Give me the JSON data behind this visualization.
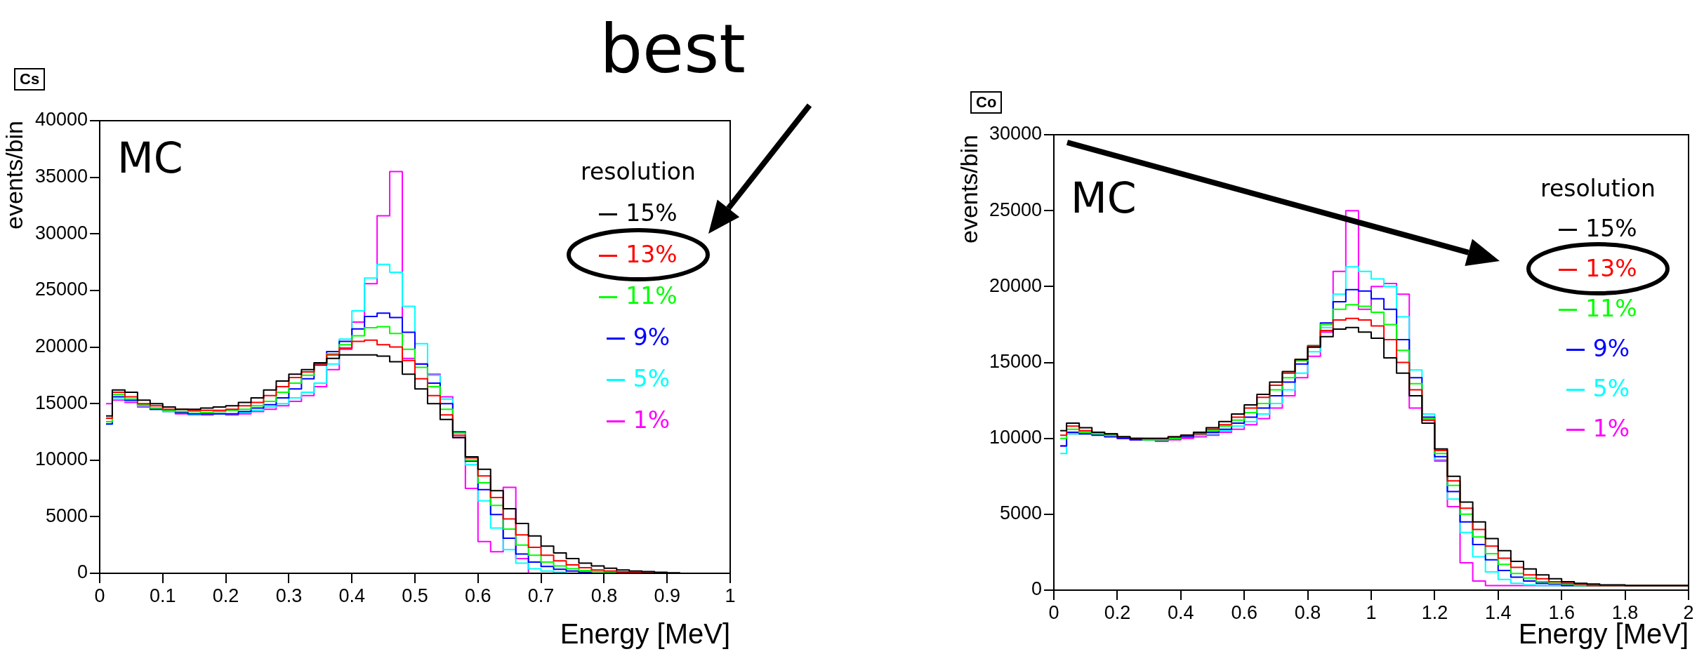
{
  "chart_data": [
    {
      "type": "histogram",
      "title": "Cs",
      "xlabel": "Energy [MeV]",
      "ylabel": "events/bin",
      "legend_title": "resolution",
      "annotations": [
        "MC",
        "best"
      ],
      "legend": "top right",
      "grid": false,
      "xlim": [
        0,
        1
      ],
      "xticks": [
        0,
        0.1,
        0.2,
        0.3,
        0.4,
        0.5,
        0.6,
        0.7,
        0.8,
        0.9,
        1
      ],
      "ylim": [
        0,
        40000
      ],
      "yticks": [
        0,
        5000,
        10000,
        15000,
        20000,
        25000,
        30000,
        35000,
        40000
      ],
      "bins": [
        0.01,
        0.02,
        0.04,
        0.06,
        0.08,
        0.1,
        0.12,
        0.14,
        0.16,
        0.18,
        0.2,
        0.22,
        0.24,
        0.26,
        0.28,
        0.3,
        0.32,
        0.34,
        0.36,
        0.38,
        0.4,
        0.42,
        0.44,
        0.46,
        0.48,
        0.5,
        0.52,
        0.54,
        0.56,
        0.58,
        0.6,
        0.62,
        0.64,
        0.66,
        0.68,
        0.7,
        0.72,
        0.74,
        0.76,
        0.78,
        0.8,
        0.82,
        0.84,
        0.86,
        0.88,
        0.9,
        0.92,
        0.94,
        0.96,
        0.98,
        1
      ],
      "series": [
        {
          "name": "15%",
          "color": "#000000",
          "values": [
            13900,
            16200,
            16000,
            15300,
            15000,
            14700,
            14500,
            14500,
            14600,
            14700,
            14800,
            15100,
            15500,
            16200,
            17000,
            17600,
            18000,
            18600,
            19000,
            19300,
            19300,
            19300,
            19200,
            18700,
            17600,
            16300,
            15000,
            13600,
            12000,
            10300,
            9200,
            7300,
            5700,
            4400,
            3300,
            2400,
            1800,
            1300,
            900,
            650,
            450,
            300,
            200,
            150,
            100,
            50,
            0,
            0,
            0,
            0
          ]
        },
        {
          "name": "13%",
          "color": "#ff0000",
          "values": [
            13700,
            16000,
            15600,
            15000,
            14800,
            14500,
            14500,
            14400,
            14400,
            14400,
            14500,
            14800,
            15100,
            15700,
            16500,
            17300,
            17800,
            18500,
            19300,
            19900,
            20500,
            20600,
            20200,
            20000,
            18800,
            17200,
            15700,
            14000,
            12200,
            10200,
            8600,
            6700,
            4800,
            3400,
            2300,
            1600,
            1100,
            750,
            500,
            300,
            200,
            120,
            80,
            50,
            0,
            0,
            0,
            0,
            0,
            0
          ]
        },
        {
          "name": "11%",
          "color": "#00ff00",
          "values": [
            13400,
            15800,
            15400,
            14900,
            14600,
            14400,
            14300,
            14300,
            14200,
            14300,
            14400,
            14500,
            14800,
            15200,
            16000,
            16800,
            17500,
            18500,
            19400,
            20200,
            21000,
            21700,
            21800,
            21200,
            19800,
            18200,
            16500,
            14500,
            12400,
            10000,
            8000,
            6000,
            3900,
            2500,
            1600,
            1000,
            650,
            400,
            250,
            150,
            100,
            50,
            0,
            0,
            0,
            0,
            0,
            0,
            0,
            0
          ]
        },
        {
          "name": "9%",
          "color": "#0000ff",
          "values": [
            13200,
            15600,
            15300,
            14900,
            14500,
            14400,
            14200,
            14100,
            14100,
            14100,
            14100,
            14300,
            14600,
            14900,
            15500,
            16300,
            17200,
            18400,
            19600,
            20500,
            21600,
            22700,
            23000,
            22600,
            21300,
            18500,
            16800,
            15000,
            12500,
            9900,
            7400,
            5200,
            3100,
            1700,
            1000,
            600,
            350,
            200,
            100,
            0,
            0,
            0,
            0,
            0,
            0,
            0,
            0,
            0,
            0,
            0
          ]
        },
        {
          "name": "5%",
          "color": "#00ffff",
          "values": [
            13200,
            15400,
            15200,
            14800,
            14500,
            14300,
            14200,
            14000,
            14100,
            14100,
            14100,
            14200,
            14400,
            14700,
            15000,
            15500,
            16000,
            16800,
            18500,
            20700,
            23200,
            26100,
            27300,
            26600,
            23600,
            20300,
            17500,
            15400,
            12500,
            9600,
            6400,
            4000,
            2100,
            900,
            400,
            200,
            100,
            0,
            0,
            0,
            0,
            0,
            0,
            0,
            0,
            0,
            0,
            0,
            0,
            0
          ]
        },
        {
          "name": "1%",
          "color": "#ff00ff",
          "values": [
            15000,
            15300,
            15100,
            14700,
            14500,
            14300,
            14100,
            14000,
            14000,
            14100,
            14000,
            14100,
            14300,
            14500,
            14800,
            15200,
            15700,
            16500,
            18000,
            19800,
            22200,
            25600,
            31600,
            35500,
            19000,
            18500,
            17600,
            15600,
            12000,
            7500,
            2800,
            1900,
            7600,
            1300,
            0,
            0,
            0,
            0,
            0,
            0,
            0,
            0,
            0,
            0,
            0,
            0,
            0,
            0,
            0,
            0
          ]
        }
      ]
    },
    {
      "type": "histogram",
      "title": "Co",
      "xlabel": "Energy [MeV]",
      "ylabel": "events/bin",
      "legend_title": "resolution",
      "annotations": [
        "MC"
      ],
      "legend": "top right",
      "grid": false,
      "xlim": [
        0,
        2
      ],
      "xticks": [
        0,
        0.2,
        0.4,
        0.6,
        0.8,
        1,
        1.2,
        1.4,
        1.6,
        1.8,
        2
      ],
      "ylim": [
        0,
        30000
      ],
      "yticks": [
        0,
        5000,
        10000,
        15000,
        20000,
        25000,
        30000
      ],
      "bins": [
        0.02,
        0.04,
        0.08,
        0.12,
        0.16,
        0.2,
        0.24,
        0.28,
        0.32,
        0.36,
        0.4,
        0.44,
        0.48,
        0.52,
        0.56,
        0.6,
        0.64,
        0.68,
        0.72,
        0.76,
        0.8,
        0.84,
        0.88,
        0.92,
        0.96,
        1,
        1.04,
        1.08,
        1.12,
        1.16,
        1.2,
        1.24,
        1.28,
        1.32,
        1.36,
        1.4,
        1.44,
        1.48,
        1.52,
        1.56,
        1.6,
        1.64,
        1.68,
        1.72,
        1.76,
        1.8,
        1.84,
        1.88,
        1.92,
        1.96,
        2
      ],
      "series": [
        {
          "name": "15%",
          "color": "#000000",
          "values": [
            10500,
            11000,
            10700,
            10400,
            10300,
            10100,
            10000,
            10000,
            10000,
            10100,
            10200,
            10400,
            10700,
            11100,
            11600,
            12200,
            12900,
            13700,
            14400,
            15200,
            16000,
            16700,
            17200,
            17300,
            17000,
            16600,
            15300,
            14300,
            12800,
            11000,
            9300,
            7500,
            5800,
            4500,
            3400,
            2600,
            1900,
            1400,
            1000,
            750,
            550,
            450,
            400,
            350,
            350,
            300,
            300,
            300,
            300,
            300
          ]
        },
        {
          "name": "13%",
          "color": "#ff0000",
          "values": [
            10200,
            10800,
            10500,
            10400,
            10300,
            10100,
            10000,
            10000,
            10000,
            10100,
            10200,
            10300,
            10600,
            10900,
            11400,
            12000,
            12700,
            13500,
            14300,
            15200,
            16100,
            17100,
            17800,
            17900,
            17800,
            17400,
            16500,
            15000,
            13200,
            11200,
            9200,
            7200,
            5400,
            4000,
            2900,
            2100,
            1500,
            1000,
            750,
            550,
            450,
            400,
            300,
            300,
            300,
            300,
            300,
            300,
            300,
            300
          ]
        },
        {
          "name": "11%",
          "color": "#00ff00",
          "values": [
            10000,
            10600,
            10400,
            10300,
            10200,
            10100,
            10000,
            9900,
            9900,
            10000,
            10200,
            10300,
            10500,
            10800,
            11200,
            11700,
            12300,
            13200,
            14000,
            15100,
            16100,
            17500,
            18500,
            18800,
            18700,
            18300,
            17500,
            15800,
            13600,
            11300,
            9000,
            6900,
            5000,
            3500,
            2400,
            1700,
            1100,
            800,
            550,
            450,
            400,
            300,
            300,
            300,
            300,
            300,
            300,
            300,
            300,
            300
          ]
        },
        {
          "name": "9%",
          "color": "#0000ff",
          "values": [
            9500,
            10400,
            10300,
            10200,
            10100,
            10000,
            9900,
            9900,
            9900,
            10000,
            10100,
            10300,
            10400,
            10600,
            11000,
            11400,
            12000,
            12800,
            13700,
            14900,
            16100,
            17600,
            19000,
            19800,
            19700,
            19200,
            18500,
            16500,
            14000,
            11400,
            8800,
            6500,
            4500,
            3000,
            2000,
            1300,
            850,
            600,
            450,
            400,
            300,
            300,
            300,
            300,
            300,
            300,
            300,
            300,
            300,
            300
          ]
        },
        {
          "name": "5%",
          "color": "#00ffff",
          "values": [
            9000,
            10300,
            10300,
            10300,
            10200,
            10100,
            10000,
            9900,
            9900,
            10000,
            10100,
            10200,
            10300,
            10500,
            10800,
            11100,
            11600,
            12300,
            13200,
            14300,
            15700,
            17300,
            19500,
            21300,
            21000,
            20500,
            20000,
            18000,
            14500,
            11600,
            8600,
            6000,
            3800,
            2200,
            1200,
            700,
            450,
            350,
            300,
            300,
            300,
            300,
            300,
            300,
            300,
            300,
            300,
            300,
            300,
            300
          ]
        },
        {
          "name": "1%",
          "color": "#ff00ff",
          "values": [
            9500,
            10300,
            10300,
            10300,
            10200,
            10000,
            9900,
            9900,
            9800,
            9900,
            10000,
            10100,
            10200,
            10400,
            10600,
            10900,
            11300,
            12000,
            12800,
            14000,
            15400,
            17000,
            21000,
            25000,
            18500,
            20000,
            20200,
            19500,
            12000,
            11200,
            8500,
            5500,
            1800,
            600,
            300,
            300,
            300,
            300,
            300,
            300,
            300,
            300,
            300,
            300,
            300,
            300,
            300,
            300,
            300,
            300
          ]
        }
      ]
    }
  ]
}
